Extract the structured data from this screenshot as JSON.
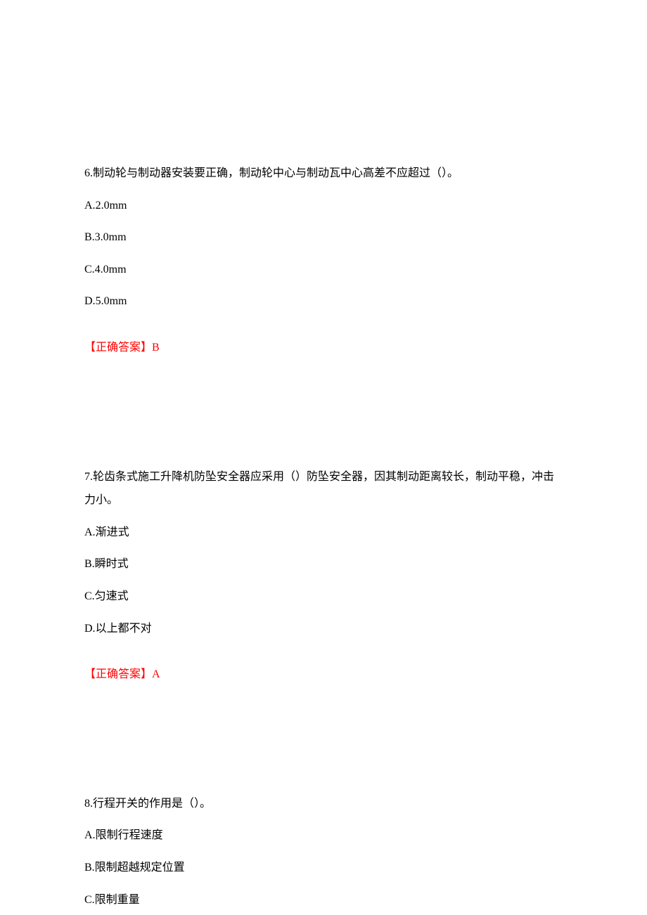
{
  "page": {
    "background_color": "#ffffff",
    "text_color": "#000000",
    "answer_color": "#ff0000",
    "font_family": "SimSun",
    "font_size_pt": 12
  },
  "questions": [
    {
      "number": "6.",
      "stem": "制动轮与制动器安装要正确，制动轮中心与制动瓦中心高差不应超过（）。",
      "options": [
        {
          "label": "A.",
          "text": "2.0mm"
        },
        {
          "label": "B.",
          "text": "3.0mm"
        },
        {
          "label": "C.",
          "text": "4.0mm"
        },
        {
          "label": "D.",
          "text": "5.0mm"
        }
      ],
      "answer_label": "【正确答案】",
      "answer_value": "B"
    },
    {
      "number": "7.",
      "stem": "轮齿条式施工升降机防坠安全器应采用（）防坠安全器，因其制动距离较长，制动平稳，冲击力小。",
      "options": [
        {
          "label": "A.",
          "text": "渐进式"
        },
        {
          "label": "B.",
          "text": "瞬时式"
        },
        {
          "label": "C.",
          "text": "匀速式"
        },
        {
          "label": "D.",
          "text": "以上都不对"
        }
      ],
      "answer_label": "【正确答案】",
      "answer_value": "A"
    },
    {
      "number": "8.",
      "stem": "行程开关的作用是（）。",
      "options": [
        {
          "label": "A.",
          "text": "限制行程速度"
        },
        {
          "label": "B.",
          "text": "限制超越规定位置"
        },
        {
          "label": "C.",
          "text": "限制重量"
        }
      ],
      "answer_label": "",
      "answer_value": ""
    }
  ]
}
